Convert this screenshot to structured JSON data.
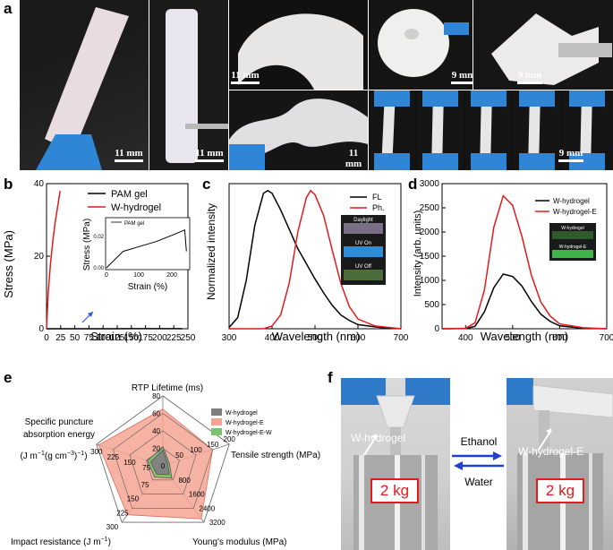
{
  "panels": {
    "a": "a",
    "b": "b",
    "c": "c",
    "d": "d",
    "e": "e",
    "f": "f"
  },
  "panel_a": {
    "scale_bars": [
      "11 mm",
      "11 mm",
      "11 mm",
      "9 mm",
      "9 mm",
      "11 mm",
      "9 mm"
    ]
  },
  "panel_b": {
    "ylabel": "Stress (MPa)",
    "xlabel": "Strain (%)",
    "xticks": [
      "0",
      "25",
      "50",
      "75",
      "100",
      "125",
      "150",
      "175",
      "200",
      "225",
      "250"
    ],
    "yticks": [
      "0",
      "20",
      "40"
    ],
    "legend": [
      "PAM gel",
      "W-hydrogel"
    ],
    "inset": {
      "legend": "PAM gel",
      "ylabel": "Stress (MPa)",
      "xlabel": "Strain (%)",
      "xticks": [
        "0",
        "100",
        "200"
      ],
      "yticks": [
        "0.00",
        "0.02"
      ]
    }
  },
  "panel_c": {
    "ylabel": "Normalized intensity",
    "xlabel": "Wavelength (nm)",
    "xticks": [
      "300",
      "400",
      "500",
      "600",
      "700"
    ],
    "legend": [
      "FL",
      "Ph."
    ],
    "inset_labels": [
      "Daylight",
      "UV On",
      "UV Off"
    ]
  },
  "panel_d": {
    "ylabel": "Intensity (arb. units)",
    "xlabel": "Wavelength (nm)",
    "xticks": [
      "400",
      "500",
      "600",
      "700"
    ],
    "yticks": [
      "0",
      "500",
      "1000",
      "1500",
      "2000",
      "2500",
      "3000"
    ],
    "legend": [
      "W-hydrogel",
      "W-hydrogel-E"
    ],
    "inset_labels": [
      "W-hydrogel",
      "W-hydrogel-E"
    ]
  },
  "panel_e": {
    "axes": {
      "rtp": "RTP Lifetime (ms)",
      "tensile": "Tensile strength (MPa)",
      "youngs": "Young's modulus (MPa)",
      "impact": "Impact resistance (J m",
      "impact_sup": "−1",
      "impact_end": ")",
      "puncture_1": "Specific puncture",
      "puncture_2": "absorption energy",
      "puncture_3a": "(J m",
      "puncture_3b": "−1",
      "puncture_3c": "(g cm",
      "puncture_3d": "−3",
      "puncture_3e": ")",
      "puncture_3f": "−1",
      "puncture_3g": ")"
    },
    "ticks": {
      "rtp": [
        "20",
        "40",
        "60",
        "80"
      ],
      "tensile": [
        "50",
        "100",
        "150",
        "200"
      ],
      "youngs": [
        "800",
        "1600",
        "2400",
        "3200"
      ],
      "impact": [
        "75",
        "150",
        "225",
        "300"
      ],
      "puncture": [
        "75",
        "150",
        "225",
        "300"
      ],
      "center": "0"
    },
    "legend": [
      "W-hydrogel",
      "W-hydrogel-E",
      "W-hydrogel-E-W"
    ],
    "colors": {
      "w_hydrogel": "#7f7f7f",
      "w_hydrogel_e": "#f4a694",
      "w_hydrogel_e_w": "#7cc26e"
    }
  },
  "panel_f": {
    "label_left": "W-hydrogel",
    "label_right": "W-hydrogel-E",
    "weight_left": "2 kg",
    "weight_right": "2 kg",
    "arrow_top": "Ethanol",
    "arrow_bottom": "Water"
  },
  "chart_data": [
    {
      "type": "line",
      "panel": "b",
      "xlabel": "Strain (%)",
      "ylabel": "Stress (MPa)",
      "xlim": [
        0,
        250
      ],
      "ylim": [
        0,
        40
      ],
      "series": [
        {
          "name": "PAM gel",
          "color": "#000000",
          "x": [
            0,
            50,
            100,
            150,
            200,
            235,
            240
          ],
          "y": [
            0,
            0.01,
            0.013,
            0.016,
            0.02,
            0.023,
            0.01
          ]
        },
        {
          "name": "W-hydrogel",
          "color": "#e41a1c",
          "x": [
            0,
            3,
            7,
            11,
            15,
            19,
            22,
            24
          ],
          "y": [
            0,
            10,
            18,
            24,
            29,
            33,
            36,
            38
          ]
        }
      ],
      "inset": {
        "series": "PAM gel",
        "xlim": [
          0,
          250
        ],
        "ylim": [
          0,
          0.025
        ]
      }
    },
    {
      "type": "line",
      "panel": "c",
      "xlabel": "Wavelength (nm)",
      "ylabel": "Normalized intensity",
      "xlim": [
        300,
        700
      ],
      "ylim": [
        0,
        1.05
      ],
      "series": [
        {
          "name": "FL",
          "color": "#000000",
          "x": [
            300,
            320,
            340,
            360,
            380,
            390,
            400,
            420,
            440,
            460,
            480,
            500,
            520,
            540,
            560,
            580,
            600,
            650,
            700
          ],
          "y": [
            0.01,
            0.08,
            0.35,
            0.75,
            0.98,
            1.0,
            0.98,
            0.86,
            0.72,
            0.58,
            0.47,
            0.36,
            0.26,
            0.17,
            0.1,
            0.06,
            0.03,
            0.01,
            0.0
          ]
        },
        {
          "name": "Ph.",
          "color": "#e41a1c",
          "x": [
            300,
            380,
            400,
            420,
            440,
            460,
            480,
            490,
            500,
            520,
            540,
            560,
            580,
            600,
            640,
            700
          ],
          "y": [
            0.0,
            0.0,
            0.02,
            0.1,
            0.33,
            0.7,
            0.95,
            1.0,
            0.97,
            0.82,
            0.57,
            0.33,
            0.16,
            0.07,
            0.02,
            0.0
          ]
        }
      ]
    },
    {
      "type": "line",
      "panel": "d",
      "xlabel": "Wavelength (nm)",
      "ylabel": "Intensity (arb. units)",
      "xlim": [
        350,
        700
      ],
      "ylim": [
        0,
        3000
      ],
      "series": [
        {
          "name": "W-hydrogel",
          "color": "#000000",
          "x": [
            350,
            400,
            420,
            440,
            460,
            480,
            500,
            520,
            540,
            560,
            580,
            600,
            650,
            700
          ],
          "y": [
            0,
            5,
            50,
            350,
            850,
            1130,
            1080,
            880,
            560,
            300,
            150,
            60,
            10,
            0
          ]
        },
        {
          "name": "W-hydrogel-E",
          "color": "#e41a1c",
          "x": [
            350,
            400,
            420,
            440,
            460,
            480,
            500,
            520,
            540,
            560,
            580,
            600,
            650,
            700
          ],
          "y": [
            0,
            10,
            120,
            800,
            2100,
            2750,
            2550,
            1900,
            1100,
            550,
            260,
            100,
            20,
            0
          ]
        }
      ]
    },
    {
      "type": "radar",
      "panel": "e",
      "axes": [
        "RTP Lifetime (ms)",
        "Tensile strength (MPa)",
        "Young's modulus (MPa)",
        "Impact resistance (J m−1)",
        "Specific puncture absorption energy"
      ],
      "max": [
        80,
        200,
        3200,
        300,
        300
      ],
      "series": [
        {
          "name": "W-hydrogel-E",
          "values": [
            65,
            150,
            3000,
            260,
            290
          ]
        },
        {
          "name": "W-hydrogel-E-W",
          "values": [
            22,
            20,
            700,
            60,
            70
          ]
        },
        {
          "name": "W-hydrogel",
          "values": [
            18,
            15,
            500,
            45,
            55
          ]
        }
      ]
    }
  ]
}
